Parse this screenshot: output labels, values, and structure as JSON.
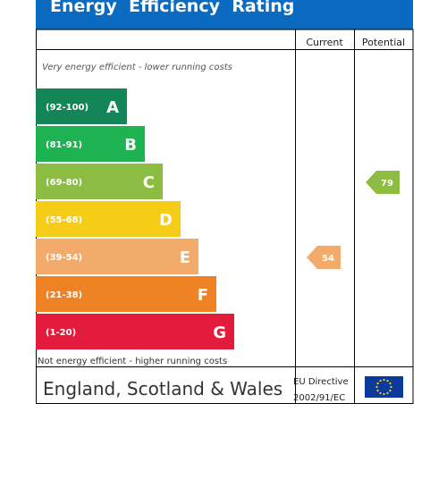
{
  "title": "Energy  Efficiency  Rating",
  "headers": {
    "current": "Current",
    "potential": "Potential"
  },
  "top_note": "Very energy efficient - lower running costs",
  "bottom_note": "Not energy efficient - higher running costs",
  "footer": {
    "region": "England, Scotland & Wales",
    "directive_line1": "EU Directive",
    "directive_line2": "2002/91/EC",
    "flag_icon": "eu-flag-icon"
  },
  "colors": {
    "title_bg": "#0a6bc0",
    "eu_flag": "#0c3a9c",
    "eu_stars": "#ffd800"
  },
  "chart_data": {
    "type": "bar",
    "categories": [
      "A",
      "B",
      "C",
      "D",
      "E",
      "F",
      "G"
    ],
    "bands": [
      {
        "letter": "A",
        "range": "(92-100)",
        "color": "#138557"
      },
      {
        "letter": "B",
        "range": "(81-91)",
        "color": "#1eb252"
      },
      {
        "letter": "C",
        "range": "(69-80)",
        "color": "#8dbc42"
      },
      {
        "letter": "D",
        "range": "(55-68)",
        "color": "#f5cd18"
      },
      {
        "letter": "E",
        "range": "(39-54)",
        "color": "#f3ab6b"
      },
      {
        "letter": "F",
        "range": "(21-38)",
        "color": "#ee8224"
      },
      {
        "letter": "G",
        "range": "(1-20)",
        "color": "#e31c3d"
      }
    ],
    "current": {
      "value": 54,
      "band": "E",
      "color": "#f3ab6b"
    },
    "potential": {
      "value": 79,
      "band": "C",
      "color": "#8dbc42"
    }
  }
}
